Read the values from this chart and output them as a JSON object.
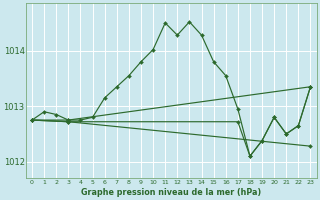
{
  "title": "Graphe pression niveau de la mer (hPa)",
  "bg_color": "#cce8ee",
  "grid_color": "#ffffff",
  "line_color": "#2d6a2d",
  "spine_color": "#7aaa7a",
  "tick_color": "#2d6a2d",
  "xlim": [
    -0.5,
    23.5
  ],
  "ylim": [
    1011.7,
    1014.85
  ],
  "yticks": [
    1012,
    1013,
    1014
  ],
  "xticks": [
    0,
    1,
    2,
    3,
    4,
    5,
    6,
    7,
    8,
    9,
    10,
    11,
    12,
    13,
    14,
    15,
    16,
    17,
    18,
    19,
    20,
    21,
    22,
    23
  ],
  "line1_x": [
    0,
    1,
    2,
    3,
    4,
    5,
    6,
    7,
    8,
    9,
    10,
    11,
    12,
    13,
    14,
    15,
    16,
    17,
    18,
    19,
    20,
    21,
    22,
    23
  ],
  "line1_y": [
    1012.75,
    1012.9,
    1012.85,
    1012.75,
    1012.75,
    1012.8,
    1013.15,
    1013.35,
    1013.55,
    1013.8,
    1014.02,
    1014.5,
    1014.28,
    1014.52,
    1014.28,
    1013.8,
    1013.55,
    1012.95,
    1012.1,
    1012.38,
    1012.8,
    1012.5,
    1012.65,
    1013.35
  ],
  "line2_x": [
    0,
    3,
    23
  ],
  "line2_y": [
    1012.75,
    1012.75,
    1013.35
  ],
  "line3_x": [
    0,
    3,
    23
  ],
  "line3_y": [
    1012.75,
    1012.72,
    1012.28
  ],
  "line4_x": [
    0,
    3,
    17,
    18,
    19,
    20,
    21,
    22,
    23
  ],
  "line4_y": [
    1012.75,
    1012.72,
    1012.72,
    1012.1,
    1012.38,
    1012.8,
    1012.5,
    1012.65,
    1013.35
  ]
}
